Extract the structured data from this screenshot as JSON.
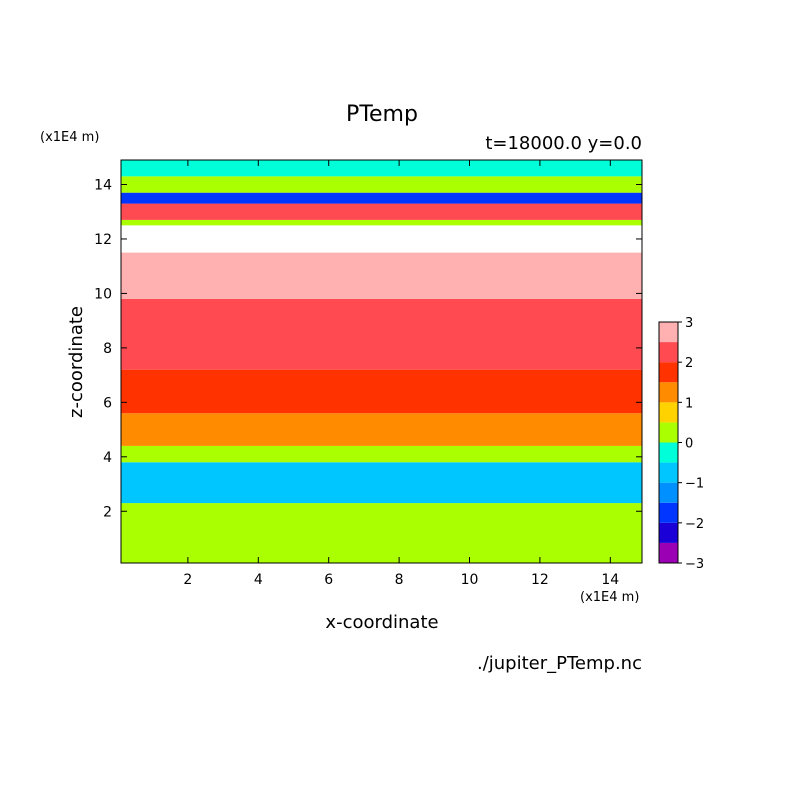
{
  "chart_data": {
    "type": "heatmap",
    "title": "PTemp",
    "subtitle": "t=18000.0 y=0.0",
    "xlabel": "x-coordinate",
    "ylabel": "z-coordinate",
    "x_unit": "(x1E4 m)",
    "y_unit": "(x1E4 m)",
    "source": "./jupiter_PTemp.nc",
    "xlim": [
      0.1,
      14.9
    ],
    "ylim": [
      0.1,
      14.9
    ],
    "x_ticks": [
      2,
      4,
      6,
      8,
      10,
      12,
      14
    ],
    "y_ticks": [
      2,
      4,
      6,
      8,
      10,
      12,
      14
    ],
    "x_tick_labels": [
      "2",
      "4",
      "6",
      "8",
      "10",
      "12",
      "14"
    ],
    "y_tick_labels": [
      "2",
      "4",
      "6",
      "8",
      "10",
      "12",
      "14"
    ],
    "colorbar": {
      "levels": [
        -3,
        -2.5,
        -2,
        -1.5,
        -1,
        -0.5,
        0,
        0.5,
        1,
        1.5,
        2,
        2.5,
        3
      ],
      "tick_values": [
        3,
        2,
        1,
        0,
        -1,
        -2,
        -3
      ],
      "tick_labels": [
        "3",
        "2",
        "1",
        "0",
        "−1",
        "−2",
        "−3"
      ],
      "colors": [
        "#9b00b4",
        "#1a00d7",
        "#0036ff",
        "#0090ff",
        "#00c6ff",
        "#00ffd8",
        "#aaff00",
        "#ffd200",
        "#ff8c00",
        "#ff3200",
        "#ff4a52",
        "#ffb0b0"
      ],
      "over_color": "#ffffff"
    },
    "field_bands": [
      {
        "z": [
          0.1,
          2.3
        ],
        "value": 0.3
      },
      {
        "z": [
          2.3,
          3.8
        ],
        "value": -0.6
      },
      {
        "z": [
          3.8,
          4.4
        ],
        "value": 0.3
      },
      {
        "z": [
          4.4,
          5.6
        ],
        "value": 1.2
      },
      {
        "z": [
          5.6,
          7.2
        ],
        "value": 1.7
      },
      {
        "z": [
          7.2,
          9.8
        ],
        "value": 2.2
      },
      {
        "z": [
          9.8,
          11.5
        ],
        "value": 2.7
      },
      {
        "z": [
          11.5,
          12.5
        ],
        "value": 3.2
      },
      {
        "z": [
          12.5,
          12.7
        ],
        "value": 0.3
      },
      {
        "z": [
          12.7,
          13.3
        ],
        "value": 2.2
      },
      {
        "z": [
          13.3,
          13.7
        ],
        "value": -1.8
      },
      {
        "z": [
          13.7,
          14.3
        ],
        "value": 0.3
      },
      {
        "z": [
          14.3,
          14.9
        ],
        "value": -0.3
      }
    ]
  }
}
